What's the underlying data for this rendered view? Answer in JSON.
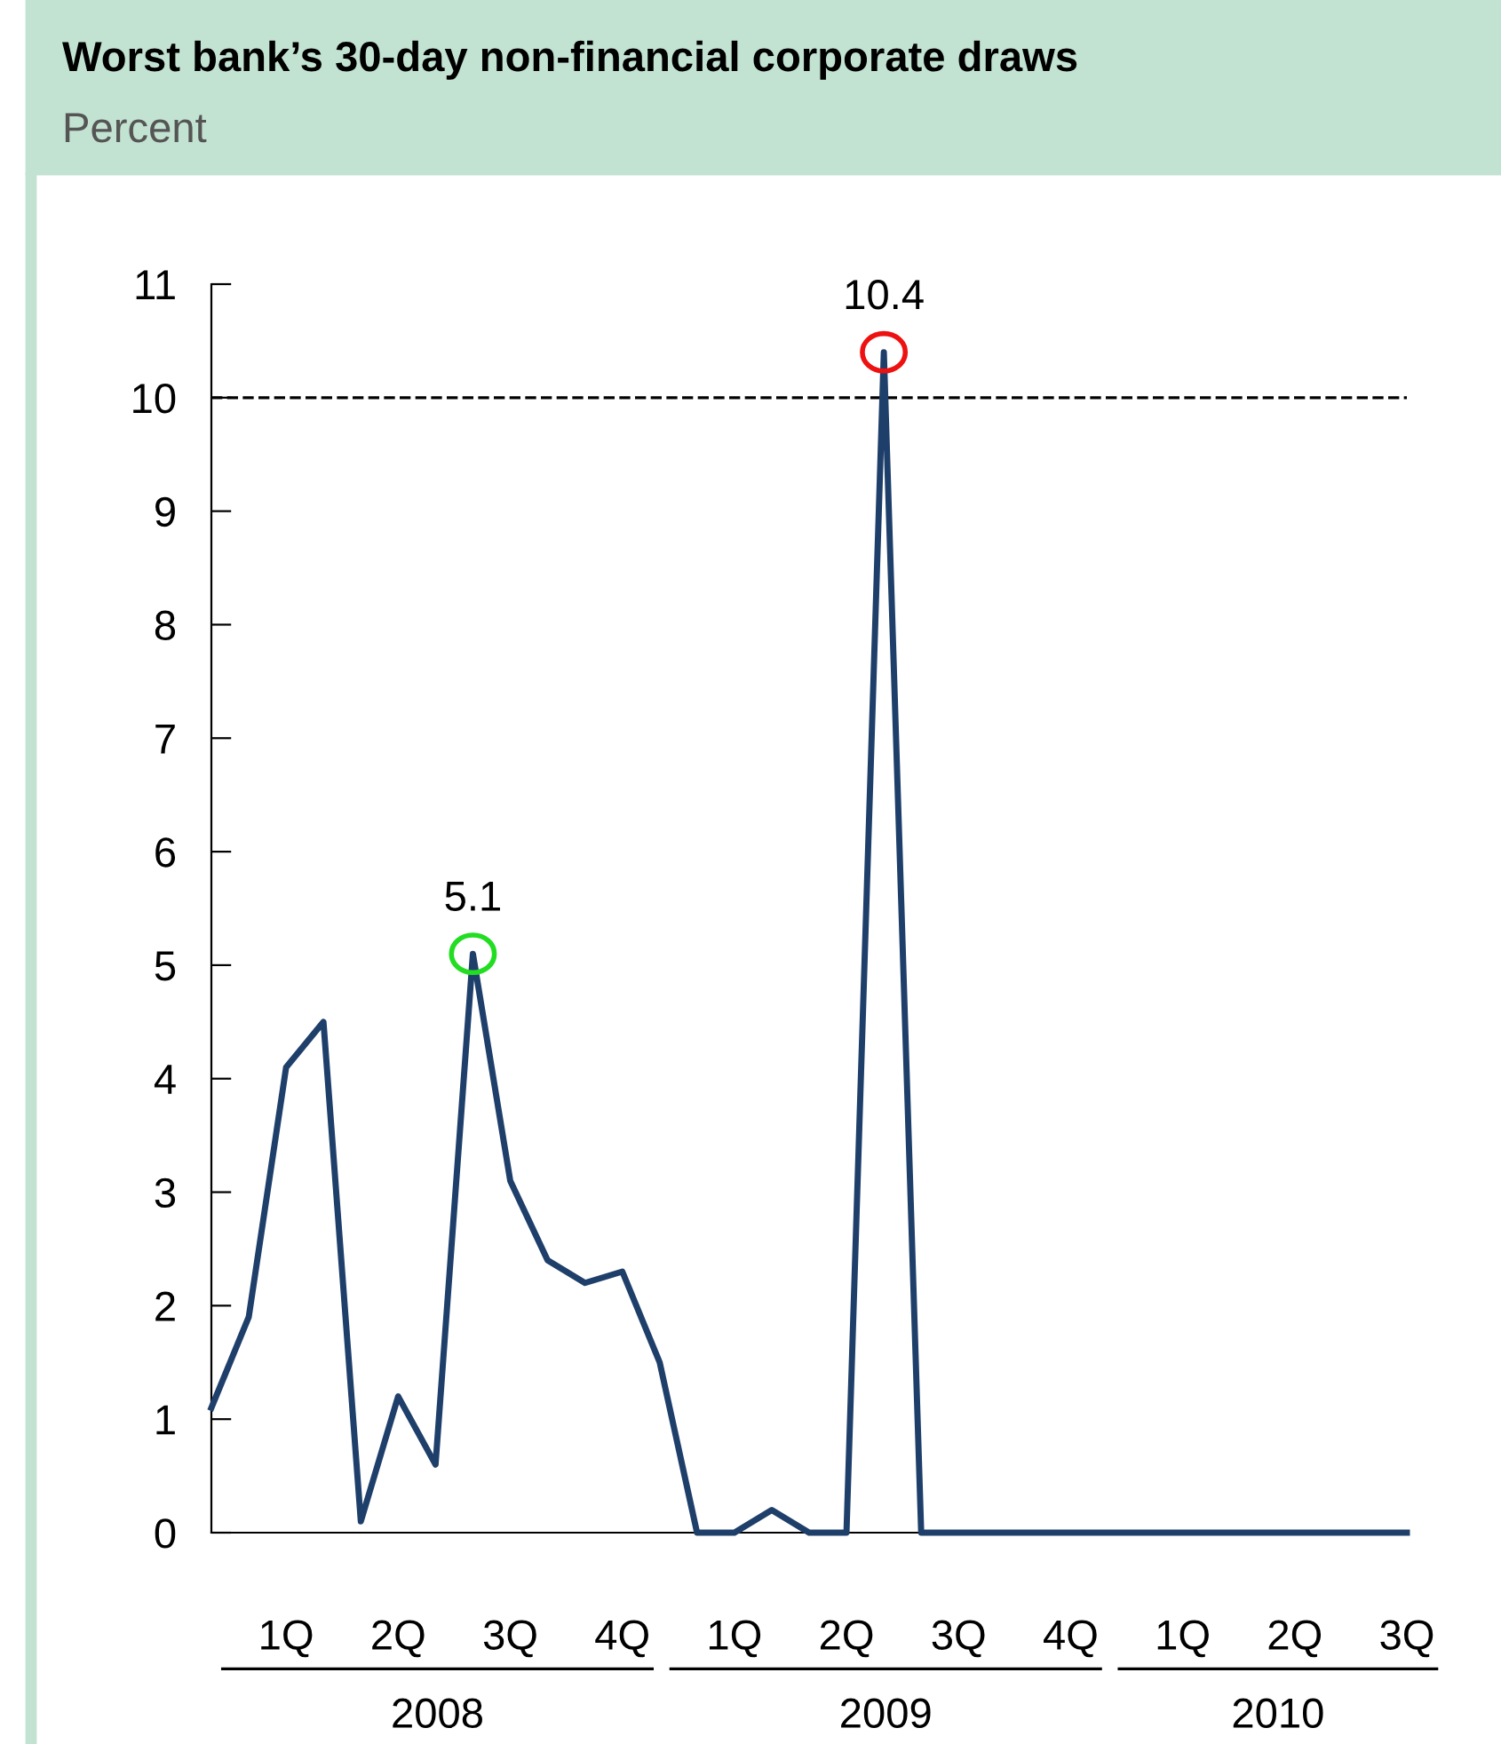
{
  "chart_data": {
    "type": "line",
    "title": "Worst bank’s 30-day non-financial corporate draws",
    "subtitle": "Percent",
    "categories": [
      null,
      null,
      "1Q",
      null,
      null,
      "2Q",
      null,
      null,
      "3Q",
      null,
      null,
      "4Q",
      null,
      null,
      "1Q",
      null,
      null,
      "2Q",
      null,
      null,
      "3Q",
      null,
      null,
      "4Q",
      null,
      null,
      "1Q",
      null,
      null,
      "2Q",
      null,
      null,
      "3Q"
    ],
    "series": [
      {
        "color": "#1f3f6b",
        "values": [
          1.1,
          1.9,
          4.1,
          4.5,
          0.1,
          1.2,
          0.6,
          5.1,
          3.1,
          2.4,
          2.2,
          2.3,
          1.5,
          0,
          0,
          0.2,
          0,
          0,
          10.4,
          0,
          0,
          0,
          0,
          0,
          0,
          0,
          0,
          0,
          0,
          0,
          0,
          0,
          0
        ]
      }
    ],
    "ylim": [
      0,
      11
    ],
    "yticks": [
      0,
      1,
      2,
      3,
      4,
      5,
      6,
      7,
      8,
      9,
      10,
      11
    ],
    "ref_lines": [
      {
        "axis": "y",
        "value": 10,
        "color": "#000000",
        "line_style": "dashed"
      }
    ],
    "annotations": [
      {
        "text": "5.1",
        "y": 5.1
      },
      {
        "text": "10.4",
        "y": 10.4
      },
      "2008",
      "2009",
      "2010"
    ],
    "grid": false,
    "legend": false,
    "marker": "none",
    "line_style": "solid"
  }
}
